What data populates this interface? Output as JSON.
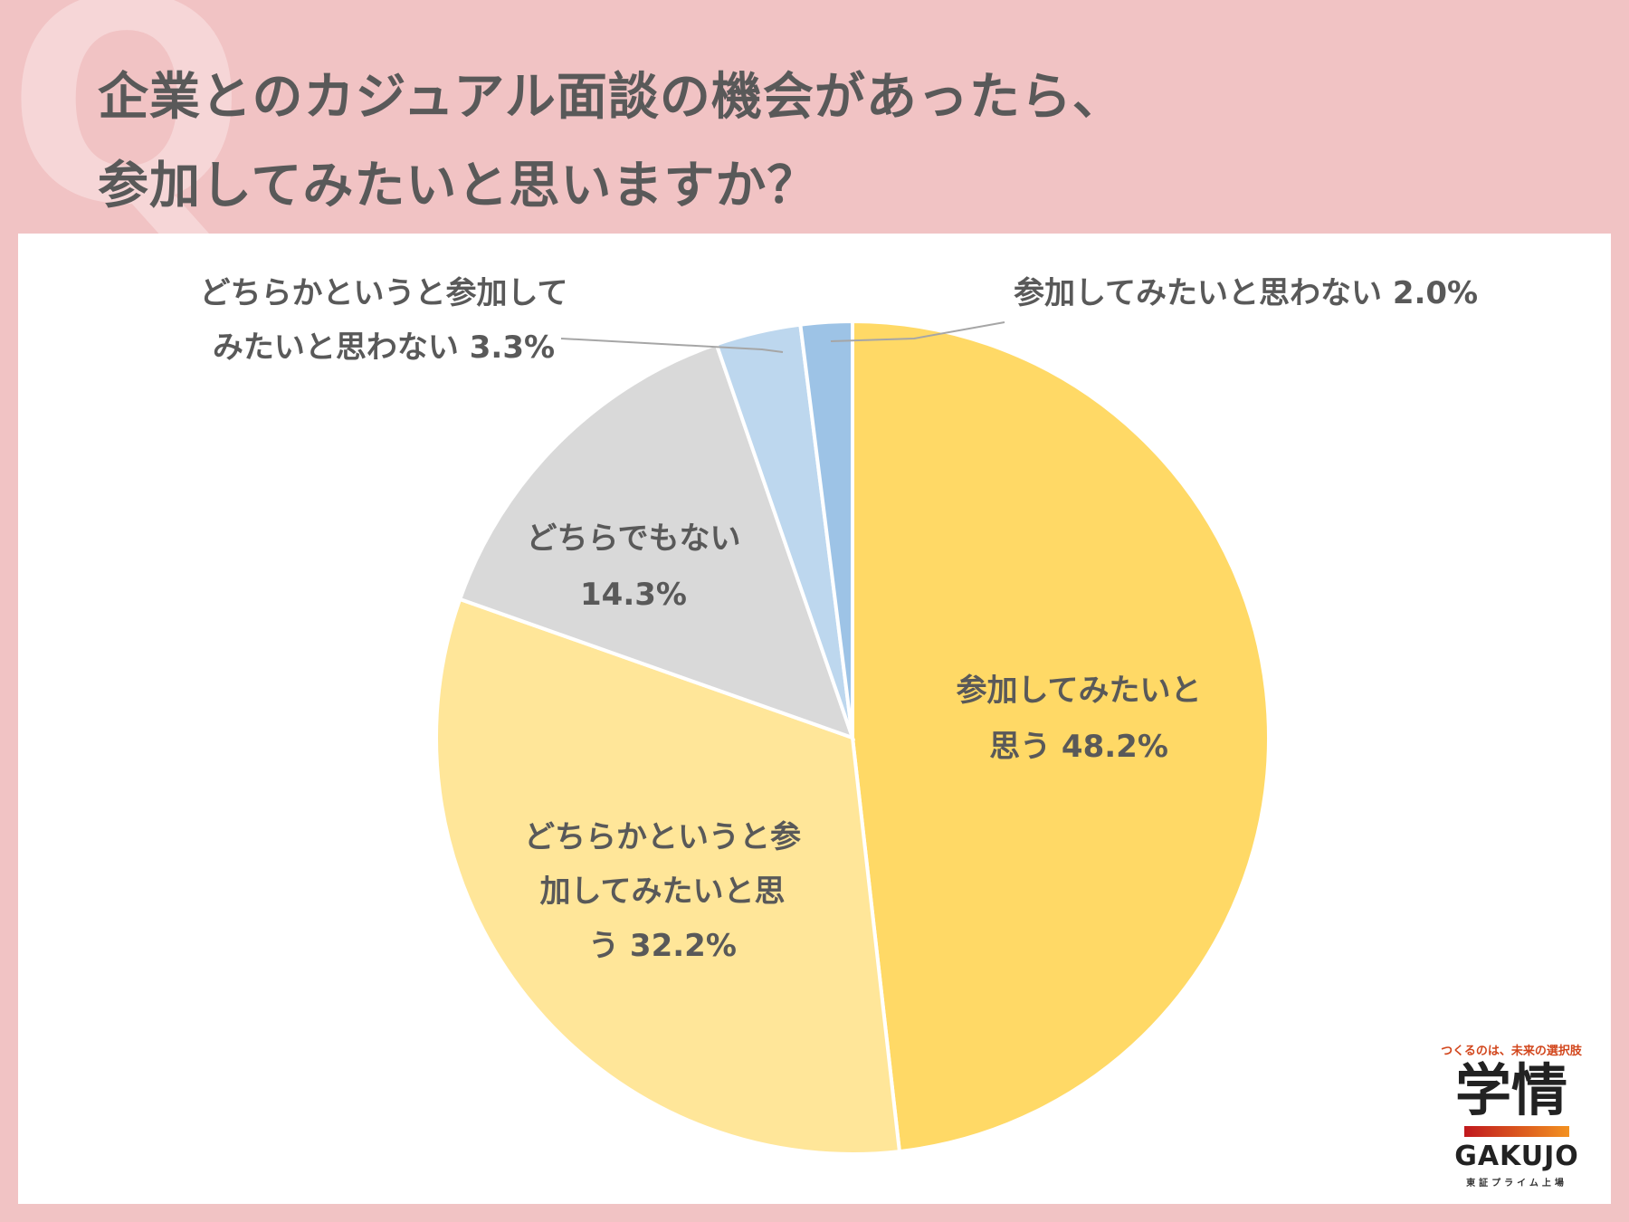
{
  "header": {
    "decoration_letter": "Q",
    "title_line_1": "企業とのカジュアル面談の機会があったら、",
    "title_line_2": "参加してみたいと思いますか？"
  },
  "chart_data": {
    "type": "pie",
    "title": "企業とのカジュアル面談の機会があったら、参加してみたいと思いますか？",
    "slices": [
      {
        "name": "参加してみたいと思う",
        "value": 48.2,
        "value_label": "48.2%",
        "color": "#ffd966",
        "label_lines": [
          "参加してみたいと",
          "思う 48.2%"
        ]
      },
      {
        "name": "どちらかというと参加してみたいと思う",
        "value": 32.2,
        "value_label": "32.2%",
        "color": "#ffe699",
        "label_lines": [
          "どちらかというと参",
          "加してみたいと思",
          "う 32.2%"
        ]
      },
      {
        "name": "どちらでもない",
        "value": 14.3,
        "value_label": "14.3%",
        "color": "#d9d9d9",
        "label_lines": [
          "どちらでもない",
          "14.3%"
        ]
      },
      {
        "name": "どちらかというと参加してみたいと思わない",
        "value": 3.3,
        "value_label": "3.3%",
        "color": "#bdd7ee",
        "label_lines": [
          "どちらかというと参加して",
          "みたいと思わない 3.3%"
        ]
      },
      {
        "name": "参加してみたいと思わない",
        "value": 2.0,
        "value_label": "2.0%",
        "color": "#9dc3e6",
        "label_lines": [
          "参加してみたいと思わない 2.0%"
        ]
      }
    ],
    "legend": "none",
    "leader_line_color": "#a6a6a6"
  },
  "logo": {
    "tagline": "つくるのは、未来の選択肢",
    "kanji": "学情",
    "latin": "GAKUJO",
    "sub": "東証プライム上場"
  }
}
